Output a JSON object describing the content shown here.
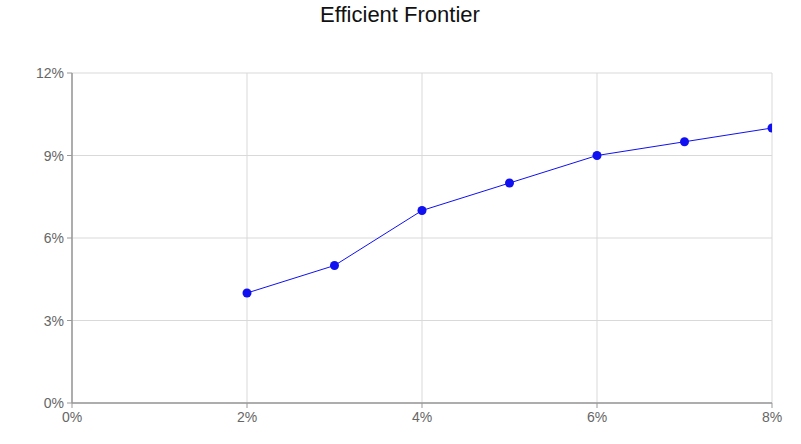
{
  "chart_data": {
    "type": "line",
    "title": "Efficient Frontier",
    "x": [
      2,
      3,
      4,
      5,
      6,
      7,
      8
    ],
    "values": [
      4,
      5,
      7,
      8,
      9,
      9.5,
      10
    ],
    "color": "#1010f0",
    "marker": "circle",
    "line_style": "solid",
    "xlim": [
      0,
      8
    ],
    "xticks": [
      {
        "value": 0,
        "label": "0%"
      },
      {
        "value": 2,
        "label": "2%"
      },
      {
        "value": 4,
        "label": "4%"
      },
      {
        "value": 6,
        "label": "6%"
      },
      {
        "value": 8,
        "label": "8%"
      }
    ],
    "ylim": [
      0,
      12
    ],
    "yticks": [
      {
        "value": 0,
        "label": "0%"
      },
      {
        "value": 3,
        "label": "3%"
      },
      {
        "value": 6,
        "label": "6%"
      },
      {
        "value": 9,
        "label": "9%"
      },
      {
        "value": 12,
        "label": "12%"
      }
    ],
    "grid": true
  }
}
